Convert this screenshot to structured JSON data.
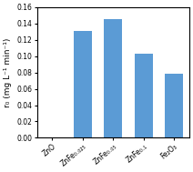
{
  "chart_data": {
    "type": "bar",
    "categories": [
      "ZnO",
      "ZnFe₀.₀₂₅",
      "ZnFe₀.₀₅",
      "ZnFe₀.₁",
      "Fe₂O₃"
    ],
    "values": [
      0.0,
      0.131,
      0.145,
      0.103,
      0.078
    ],
    "color": "#5B9BD5",
    "ylabel": "r₀ (mg L⁻¹ min⁻¹)",
    "ylim": [
      0,
      0.16
    ],
    "yticks": [
      {
        "value": 0.0,
        "label": "0.00"
      },
      0.02,
      0.04,
      0.06,
      0.08,
      {
        "value": 0.1,
        "label": "0.10"
      },
      0.12,
      0.14,
      0.16
    ],
    "grid": false
  }
}
